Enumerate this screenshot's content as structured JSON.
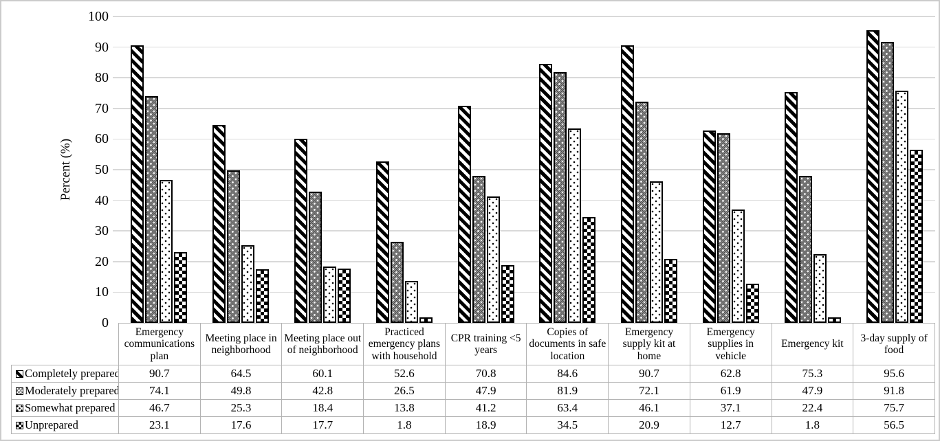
{
  "figure": {
    "background": "#ffffff",
    "frame_color": "#cbcbcb",
    "grid_color": "#d9d9d9",
    "table_border_color": "#b3b3b3",
    "bar_outline_color": "#000000",
    "text_color": "#000000"
  },
  "chart_data": {
    "type": "bar",
    "title": "",
    "xlabel": "",
    "ylabel": "Percent (%)",
    "ylim": [
      0,
      100
    ],
    "yticks": [
      0,
      10,
      20,
      30,
      40,
      50,
      60,
      70,
      80,
      90,
      100
    ],
    "grid": true,
    "legend_position": "data-table-left-column",
    "categories": [
      "Emergency communications plan",
      "Meeting place in neighborhood",
      "Meeting place out of neighborhood",
      "Practiced emergency plans with household",
      "CPR training <5 years",
      "Copies of documents in safe location",
      "Emergency supply kit at home",
      "Emergency supplies in vehicle",
      "Emergency kit",
      "3-day supply of food"
    ],
    "series": [
      {
        "name": "Completely prepared",
        "pattern": "wide-downward-diagonal-stripes",
        "values": [
          90.7,
          64.5,
          60.1,
          52.6,
          70.8,
          84.6,
          90.7,
          62.8,
          75.3,
          95.6
        ]
      },
      {
        "name": "Moderately prepared",
        "pattern": "dotted-diamond-grey",
        "values": [
          74.1,
          49.8,
          42.8,
          26.5,
          47.9,
          81.9,
          72.1,
          61.9,
          47.9,
          91.8
        ]
      },
      {
        "name": "Somewhat prepared",
        "pattern": "sparse-dots-on-white",
        "values": [
          46.7,
          25.3,
          18.4,
          13.8,
          41.2,
          63.4,
          46.1,
          37.1,
          22.4,
          75.7
        ]
      },
      {
        "name": "Unprepared",
        "pattern": "checkerboard",
        "values": [
          23.1,
          17.6,
          17.7,
          1.8,
          18.9,
          34.5,
          20.9,
          12.7,
          1.8,
          56.5
        ]
      }
    ]
  }
}
